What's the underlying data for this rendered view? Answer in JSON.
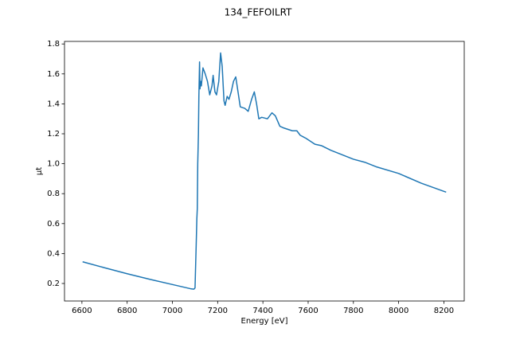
{
  "chart_data": {
    "type": "line",
    "title": "134_FEFOILRT",
    "x_label": "Energy [eV]",
    "y_label": "μt",
    "xlim": [
      6523,
      8290
    ],
    "ylim": [
      0.083,
      1.817
    ],
    "xticks": [
      6600,
      6800,
      7000,
      7200,
      7400,
      7600,
      7800,
      8000,
      8200
    ],
    "yticks": [
      0.2,
      0.4,
      0.6,
      0.8,
      {
        "value": 1.0,
        "label": "1.0"
      },
      1.2,
      1.4,
      1.6,
      1.8
    ],
    "grid": false,
    "series": [
      {
        "color": "#1f77b4",
        "x": [
          6603,
          6700,
          6800,
          6900,
          7000,
          7080,
          7095,
          7100,
          7105,
          7108,
          7110,
          7112,
          7115,
          7117,
          7120,
          7122,
          7125,
          7128,
          7135,
          7145,
          7155,
          7165,
          7175,
          7180,
          7188,
          7195,
          7205,
          7213,
          7220,
          7228,
          7233,
          7242,
          7250,
          7260,
          7270,
          7280,
          7290,
          7300,
          7320,
          7335,
          7350,
          7362,
          7372,
          7382,
          7395,
          7420,
          7440,
          7455,
          7475,
          7490,
          7510,
          7530,
          7550,
          7565,
          7590,
          7610,
          7630,
          7660,
          7700,
          7750,
          7800,
          7850,
          7900,
          8000,
          8100,
          8210
        ],
        "values": [
          0.345,
          0.305,
          0.265,
          0.228,
          0.193,
          0.165,
          0.162,
          0.17,
          0.45,
          0.63,
          0.7,
          1.0,
          1.2,
          1.45,
          1.68,
          1.5,
          1.55,
          1.52,
          1.64,
          1.6,
          1.55,
          1.46,
          1.52,
          1.59,
          1.48,
          1.46,
          1.55,
          1.74,
          1.65,
          1.42,
          1.39,
          1.45,
          1.43,
          1.48,
          1.55,
          1.58,
          1.48,
          1.38,
          1.37,
          1.35,
          1.43,
          1.48,
          1.4,
          1.3,
          1.31,
          1.3,
          1.34,
          1.32,
          1.25,
          1.24,
          1.23,
          1.22,
          1.22,
          1.19,
          1.17,
          1.15,
          1.13,
          1.12,
          1.09,
          1.06,
          1.03,
          1.01,
          0.98,
          0.935,
          0.87,
          0.81
        ]
      }
    ]
  }
}
